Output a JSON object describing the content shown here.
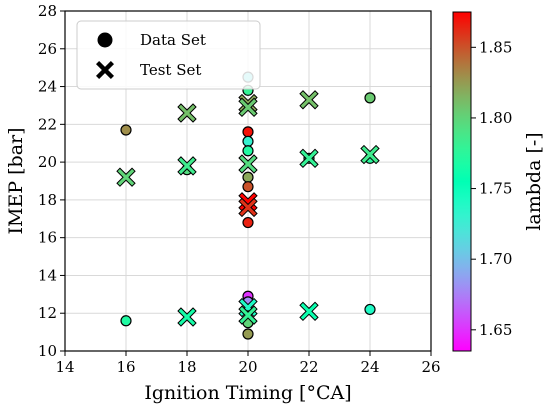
{
  "chart_data": {
    "type": "scatter",
    "xlabel": "Ignition Timing [°CA]",
    "ylabel": "IMEP [bar]",
    "colorbar_label": "lambda [-]",
    "xlim": [
      14,
      26
    ],
    "ylim": [
      10,
      28
    ],
    "xticks": [
      "14",
      "16",
      "18",
      "20",
      "22",
      "24",
      "26"
    ],
    "yticks": [
      "10",
      "12",
      "14",
      "16",
      "18",
      "20",
      "22",
      "24",
      "26",
      "28"
    ],
    "grid": true,
    "legend_position": "top-left",
    "colorbar": {
      "min": 1.635,
      "max": 1.875,
      "ticks": [
        "1.65",
        "1.70",
        "1.75",
        "1.80",
        "1.85"
      ],
      "colormap": "rainbow"
    },
    "series": [
      {
        "name": "Data Set",
        "marker": "circle",
        "points": [
          {
            "x": 16,
            "y": 21.7,
            "c": 1.83
          },
          {
            "x": 16,
            "y": 11.6,
            "c": 1.77
          },
          {
            "x": 18,
            "y": 19.6,
            "c": 1.795
          },
          {
            "x": 20,
            "y": 24.5,
            "c": 1.715
          },
          {
            "x": 20,
            "y": 23.8,
            "c": 1.78
          },
          {
            "x": 20,
            "y": 21.6,
            "c": 1.87
          },
          {
            "x": 20,
            "y": 21.1,
            "c": 1.73
          },
          {
            "x": 20,
            "y": 20.6,
            "c": 1.77
          },
          {
            "x": 20,
            "y": 19.2,
            "c": 1.82
          },
          {
            "x": 20,
            "y": 18.7,
            "c": 1.85
          },
          {
            "x": 20,
            "y": 16.8,
            "c": 1.865
          },
          {
            "x": 20,
            "y": 12.9,
            "c": 1.65
          },
          {
            "x": 20,
            "y": 12.6,
            "c": 1.68
          },
          {
            "x": 20,
            "y": 11.5,
            "c": 1.8
          },
          {
            "x": 20,
            "y": 10.9,
            "c": 1.825
          },
          {
            "x": 22,
            "y": 20.2,
            "c": 1.78
          },
          {
            "x": 24,
            "y": 23.4,
            "c": 1.805
          },
          {
            "x": 24,
            "y": 20.2,
            "c": 1.775
          },
          {
            "x": 24,
            "y": 12.2,
            "c": 1.74
          }
        ]
      },
      {
        "name": "Test Set",
        "marker": "x",
        "points": [
          {
            "x": 16,
            "y": 19.2,
            "c": 1.8
          },
          {
            "x": 18,
            "y": 22.6,
            "c": 1.81
          },
          {
            "x": 18,
            "y": 19.8,
            "c": 1.785
          },
          {
            "x": 18,
            "y": 11.8,
            "c": 1.765
          },
          {
            "x": 20,
            "y": 23.1,
            "c": 1.82
          },
          {
            "x": 20,
            "y": 22.9,
            "c": 1.805
          },
          {
            "x": 20,
            "y": 19.9,
            "c": 1.795
          },
          {
            "x": 20,
            "y": 17.9,
            "c": 1.875
          },
          {
            "x": 20,
            "y": 17.6,
            "c": 1.86
          },
          {
            "x": 20,
            "y": 12.3,
            "c": 1.74
          },
          {
            "x": 20,
            "y": 11.9,
            "c": 1.78
          },
          {
            "x": 22,
            "y": 23.3,
            "c": 1.81
          },
          {
            "x": 22,
            "y": 20.2,
            "c": 1.78
          },
          {
            "x": 22,
            "y": 12.1,
            "c": 1.76
          },
          {
            "x": 24,
            "y": 20.4,
            "c": 1.785
          }
        ]
      }
    ]
  }
}
